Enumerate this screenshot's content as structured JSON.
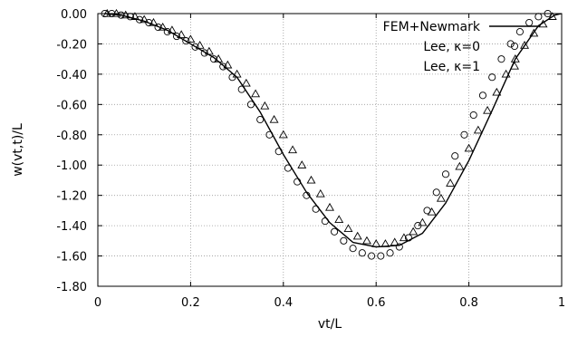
{
  "chart_data": {
    "type": "line",
    "title": "",
    "xlabel": "vt/L",
    "ylabel": "w(vt,t)/L",
    "xlim": [
      0,
      1
    ],
    "ylim": [
      -1.8,
      0
    ],
    "xticks": [
      "0",
      "0.2",
      "0.4",
      "0.6",
      "0.8",
      "1"
    ],
    "yticks": [
      "0.00",
      "-0.20",
      "-0.40",
      "-0.60",
      "-0.80",
      "-1.00",
      "-1.20",
      "-1.40",
      "-1.60",
      "-1.80"
    ],
    "grid": true,
    "legend_position": "top-right",
    "series": [
      {
        "name": "FEM+Newmark",
        "style": "line",
        "x": [
          0.015,
          0.05,
          0.1,
          0.15,
          0.2,
          0.25,
          0.3,
          0.35,
          0.4,
          0.45,
          0.5,
          0.55,
          0.6,
          0.65,
          0.7,
          0.75,
          0.8,
          0.85,
          0.9,
          0.95,
          0.985,
          1.0
        ],
        "values": [
          0.0,
          -0.01,
          -0.05,
          -0.11,
          -0.2,
          -0.29,
          -0.42,
          -0.65,
          -0.93,
          -1.18,
          -1.38,
          -1.51,
          -1.54,
          -1.53,
          -1.45,
          -1.25,
          -0.97,
          -0.64,
          -0.3,
          -0.08,
          -0.01,
          0.0
        ]
      },
      {
        "name": "Lee, κ=0",
        "style": "circle",
        "x": [
          0.015,
          0.03,
          0.05,
          0.07,
          0.09,
          0.11,
          0.13,
          0.15,
          0.17,
          0.19,
          0.21,
          0.23,
          0.25,
          0.27,
          0.29,
          0.31,
          0.33,
          0.35,
          0.37,
          0.39,
          0.41,
          0.43,
          0.45,
          0.47,
          0.49,
          0.51,
          0.53,
          0.55,
          0.57,
          0.59,
          0.61,
          0.63,
          0.65,
          0.67,
          0.69,
          0.71,
          0.73,
          0.75,
          0.77,
          0.79,
          0.81,
          0.83,
          0.85,
          0.87,
          0.89,
          0.91,
          0.93,
          0.95,
          0.97
        ],
        "values": [
          0.0,
          0.0,
          -0.01,
          -0.02,
          -0.04,
          -0.06,
          -0.09,
          -0.12,
          -0.15,
          -0.18,
          -0.22,
          -0.26,
          -0.3,
          -0.35,
          -0.42,
          -0.5,
          -0.6,
          -0.7,
          -0.8,
          -0.91,
          -1.02,
          -1.11,
          -1.2,
          -1.29,
          -1.37,
          -1.44,
          -1.5,
          -1.55,
          -1.58,
          -1.6,
          -1.6,
          -1.58,
          -1.54,
          -1.48,
          -1.4,
          -1.3,
          -1.18,
          -1.06,
          -0.94,
          -0.8,
          -0.67,
          -0.54,
          -0.42,
          -0.3,
          -0.2,
          -0.12,
          -0.06,
          -0.02,
          0.0
        ]
      },
      {
        "name": "Lee, κ=1",
        "style": "triangle",
        "x": [
          0.02,
          0.04,
          0.06,
          0.08,
          0.1,
          0.12,
          0.14,
          0.16,
          0.18,
          0.2,
          0.22,
          0.24,
          0.26,
          0.28,
          0.3,
          0.32,
          0.34,
          0.36,
          0.38,
          0.4,
          0.42,
          0.44,
          0.46,
          0.48,
          0.5,
          0.52,
          0.54,
          0.56,
          0.58,
          0.6,
          0.62,
          0.64,
          0.66,
          0.68,
          0.7,
          0.72,
          0.74,
          0.76,
          0.78,
          0.8,
          0.82,
          0.84,
          0.86,
          0.88,
          0.9,
          0.92,
          0.94,
          0.96,
          0.98
        ],
        "values": [
          0.0,
          0.0,
          -0.01,
          -0.02,
          -0.04,
          -0.06,
          -0.09,
          -0.11,
          -0.14,
          -0.17,
          -0.21,
          -0.25,
          -0.3,
          -0.34,
          -0.4,
          -0.46,
          -0.53,
          -0.61,
          -0.7,
          -0.8,
          -0.9,
          -1.0,
          -1.1,
          -1.19,
          -1.28,
          -1.36,
          -1.42,
          -1.47,
          -1.5,
          -1.52,
          -1.52,
          -1.51,
          -1.48,
          -1.44,
          -1.38,
          -1.31,
          -1.22,
          -1.12,
          -1.01,
          -0.89,
          -0.77,
          -0.64,
          -0.52,
          -0.4,
          -0.3,
          -0.21,
          -0.13,
          -0.07,
          -0.02
        ]
      }
    ]
  }
}
